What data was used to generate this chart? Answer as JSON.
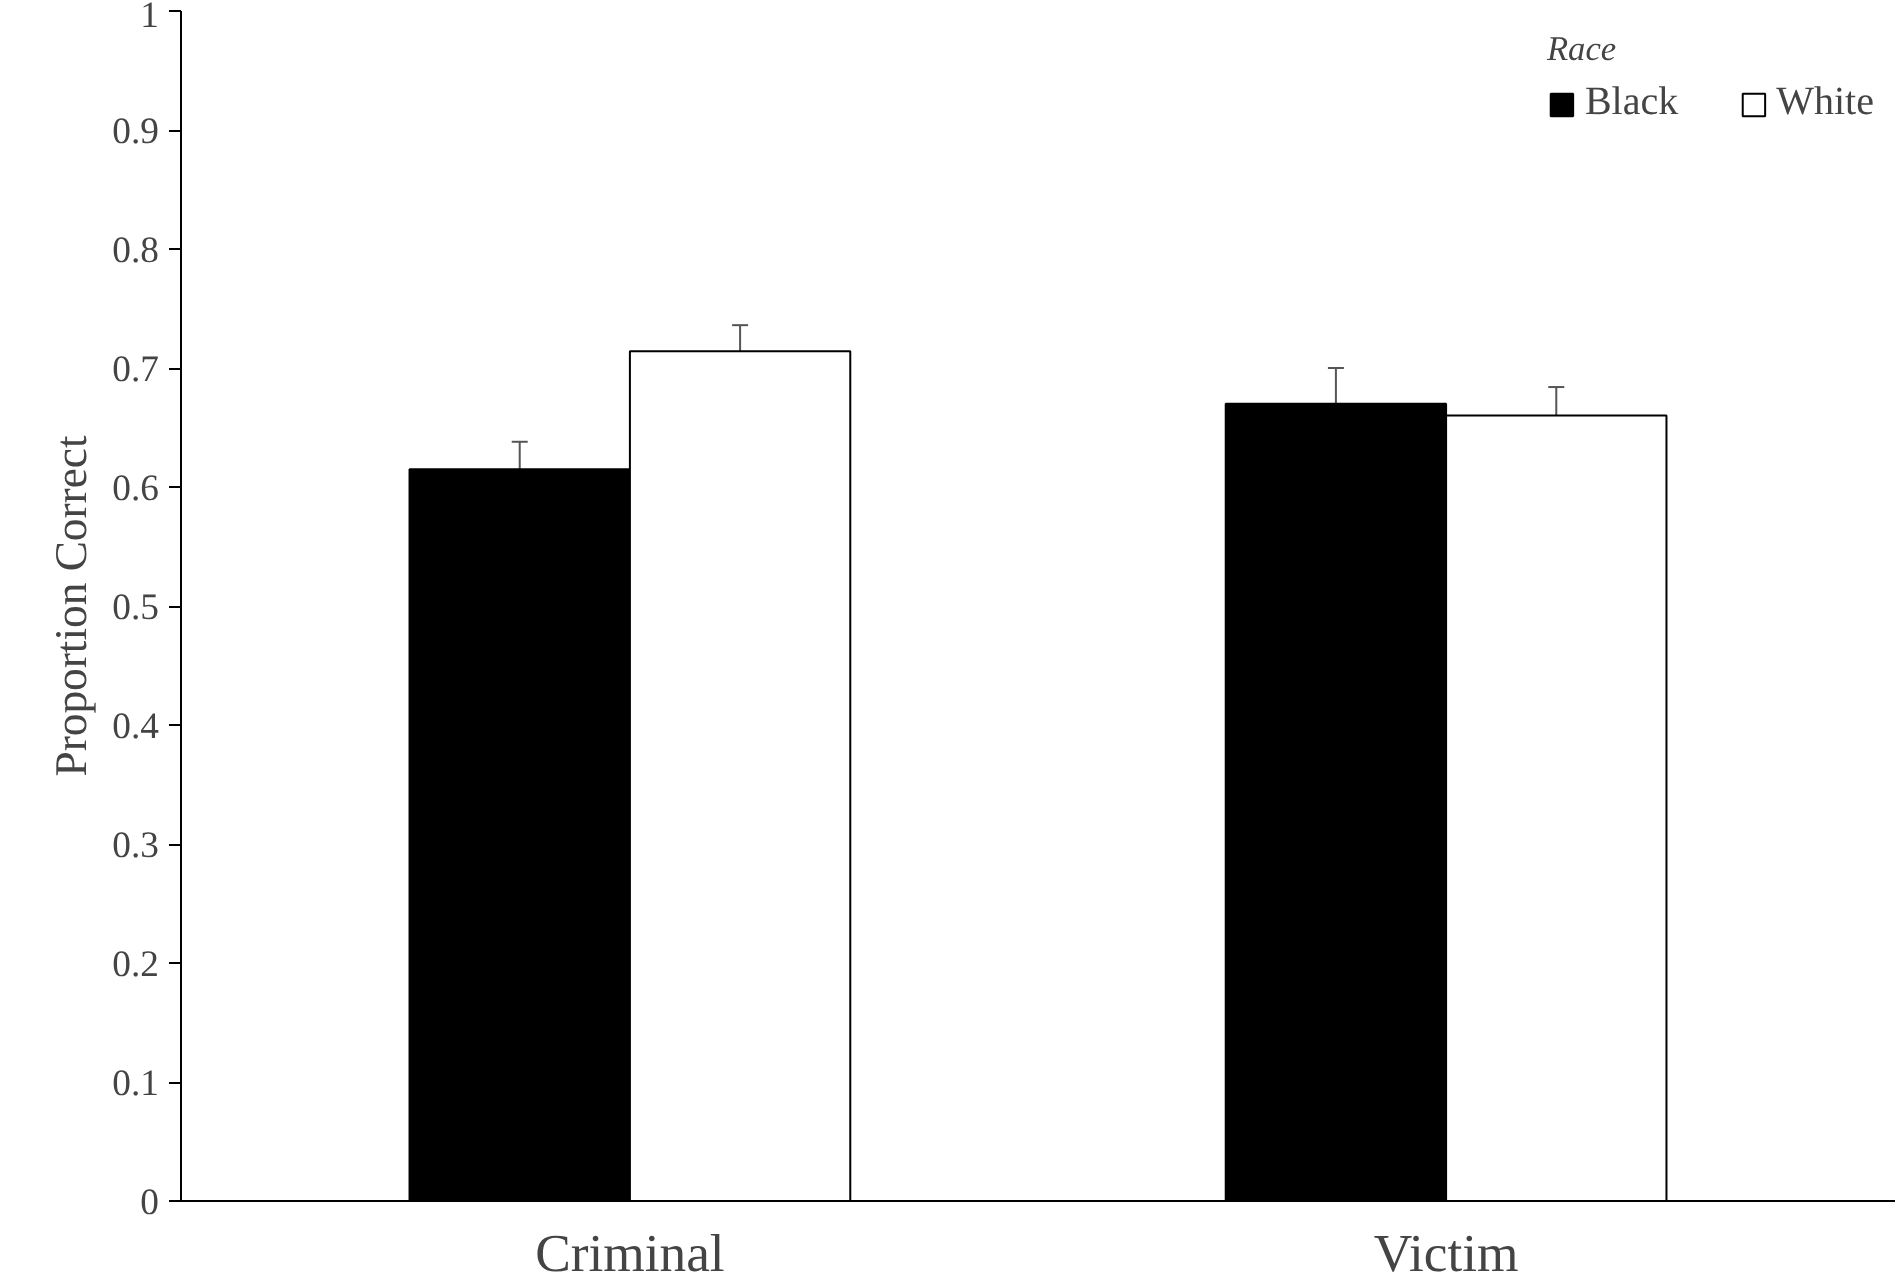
{
  "chart_data": {
    "type": "bar",
    "ylabel": "Proportion Correct",
    "legend_title": "Race",
    "legend": "top right",
    "grid": false,
    "categories": [
      "Criminal",
      "Victim"
    ],
    "series": [
      {
        "name": "Black",
        "color": "#000000",
        "values": [
          0.615,
          0.67
        ],
        "errors": [
          0.023,
          0.03
        ]
      },
      {
        "name": "White",
        "color": "#ffffff",
        "values": [
          0.714,
          0.66
        ],
        "errors": [
          0.022,
          0.024
        ]
      }
    ],
    "ylim": [
      0,
      1
    ],
    "yticks": [
      0,
      0.1,
      0.2,
      0.3,
      0.4,
      0.5,
      0.6,
      0.7,
      0.8,
      0.9,
      1
    ]
  }
}
